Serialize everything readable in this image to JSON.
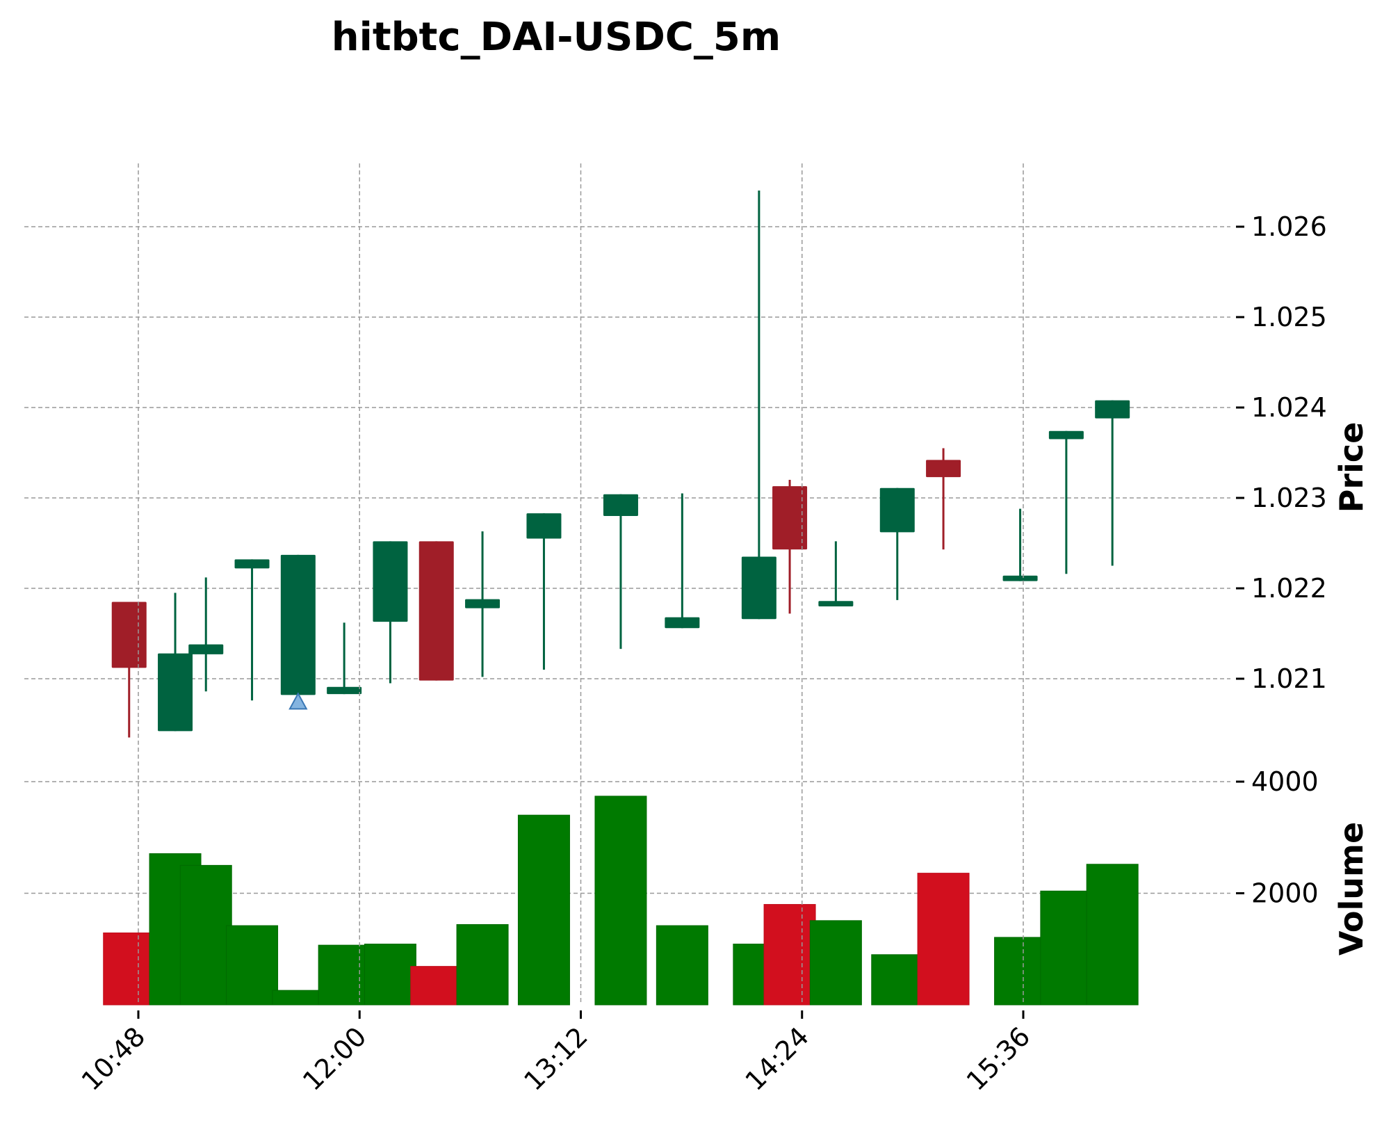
{
  "chart_data": {
    "type": "candlestick",
    "title": "hitbtc_DAI-USDC_5m",
    "price_panel": {
      "ylabel": "Price",
      "yticks": [
        1.021,
        1.022,
        1.023,
        1.024,
        1.025,
        1.026
      ],
      "ylim": [
        1.01985,
        1.02665
      ]
    },
    "volume_panel": {
      "ylabel": "Volume",
      "yticks": [
        2000,
        4000
      ],
      "ylim": [
        0,
        4000
      ]
    },
    "xticks": [
      "10:48",
      "12:00",
      "13:12",
      "14:24",
      "15:36"
    ],
    "xtick_times": [
      "10:48",
      "12:00",
      "13:12",
      "14:24",
      "15:36"
    ],
    "colors": {
      "up_candle": "#006340",
      "down_candle": "#a01e28",
      "up_volume": "#007a00",
      "down_volume": "#d20f1e",
      "marker": "#5b9bd5"
    },
    "candles": [
      {
        "time": "10:45",
        "open": 1.02185,
        "high": 1.02185,
        "low": 1.02035,
        "close": 1.02112,
        "volume": 1290
      },
      {
        "time": "11:00",
        "open": 1.02042,
        "high": 1.02195,
        "low": 1.02042,
        "close": 1.02128,
        "volume": 2710
      },
      {
        "time": "11:10",
        "open": 1.02127,
        "high": 1.02212,
        "low": 1.02086,
        "close": 1.02138,
        "volume": 2500
      },
      {
        "time": "11:25",
        "open": 1.02222,
        "high": 1.02232,
        "low": 1.02076,
        "close": 1.02232,
        "volume": 1420
      },
      {
        "time": "11:40",
        "open": 1.02082,
        "high": 1.02237,
        "low": 1.02082,
        "close": 1.02237,
        "volume": 260
      },
      {
        "time": "11:55",
        "open": 1.02083,
        "high": 1.02162,
        "low": 1.02083,
        "close": 1.02091,
        "volume": 1070
      },
      {
        "time": "12:10",
        "open": 1.02163,
        "high": 1.02252,
        "low": 1.02095,
        "close": 1.02252,
        "volume": 1090
      },
      {
        "time": "12:25",
        "open": 1.02252,
        "high": 1.02252,
        "low": 1.02098,
        "close": 1.02098,
        "volume": 690
      },
      {
        "time": "12:40",
        "open": 1.02178,
        "high": 1.02263,
        "low": 1.02102,
        "close": 1.02188,
        "volume": 1440
      },
      {
        "time": "13:00",
        "open": 1.02255,
        "high": 1.02283,
        "low": 1.0211,
        "close": 1.02283,
        "volume": 3400
      },
      {
        "time": "13:25",
        "open": 1.0228,
        "high": 1.02304,
        "low": 1.02133,
        "close": 1.02304,
        "volume": 3740
      },
      {
        "time": "13:45",
        "open": 1.02156,
        "high": 1.02305,
        "low": 1.02156,
        "close": 1.02168,
        "volume": 1420
      },
      {
        "time": "14:10",
        "open": 1.02166,
        "high": 1.0264,
        "low": 1.02166,
        "close": 1.02235,
        "volume": 1090
      },
      {
        "time": "14:20",
        "open": 1.02313,
        "high": 1.0232,
        "low": 1.02172,
        "close": 1.02243,
        "volume": 1800
      },
      {
        "time": "14:35",
        "open": 1.0218,
        "high": 1.02252,
        "low": 1.0218,
        "close": 1.02186,
        "volume": 1510
      },
      {
        "time": "14:55",
        "open": 1.02262,
        "high": 1.02311,
        "low": 1.02187,
        "close": 1.02311,
        "volume": 900
      },
      {
        "time": "15:10",
        "open": 1.02342,
        "high": 1.02355,
        "low": 1.02243,
        "close": 1.02323,
        "volume": 2360
      },
      {
        "time": "15:35",
        "open": 1.02208,
        "high": 1.02288,
        "low": 1.02208,
        "close": 1.02214,
        "volume": 1210
      },
      {
        "time": "15:50",
        "open": 1.02365,
        "high": 1.02374,
        "low": 1.02216,
        "close": 1.02374,
        "volume": 2040
      },
      {
        "time": "16:05",
        "open": 1.02388,
        "high": 1.02408,
        "low": 1.02225,
        "close": 1.02408,
        "volume": 2520
      }
    ],
    "markers": [
      {
        "time": "11:40",
        "type": "buy",
        "shape": "triangle-up",
        "price": 1.02082
      }
    ]
  }
}
